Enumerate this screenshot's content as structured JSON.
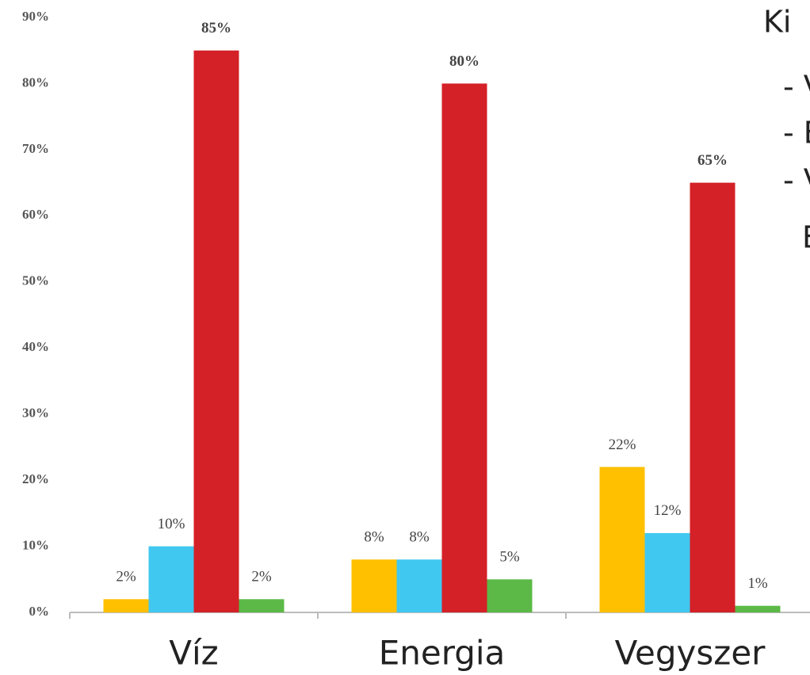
{
  "chart_data": {
    "type": "bar",
    "categories": [
      "Víz",
      "Energia",
      "Vegyszer"
    ],
    "series": [
      {
        "color": "#ffc000",
        "values": [
          2,
          8,
          22
        ],
        "value_labels": [
          "2%",
          "8%",
          "22%"
        ]
      },
      {
        "color": "#40c8f0",
        "values": [
          10,
          8,
          12
        ],
        "value_labels": [
          "10%",
          "8%",
          "12%"
        ]
      },
      {
        "color": "#d42027",
        "values": [
          85,
          80,
          65
        ],
        "value_labels": [
          "85%",
          "80%",
          "65%"
        ]
      },
      {
        "color": "#5cb947",
        "values": [
          2,
          5,
          1
        ],
        "value_labels": [
          "2%",
          "5%",
          "1%"
        ]
      }
    ],
    "ylim": [
      0,
      90
    ],
    "yticks": [
      {
        "value": 0,
        "label": "0%"
      },
      {
        "value": 10,
        "label": "10%"
      },
      {
        "value": 20,
        "label": "20%"
      },
      {
        "value": 30,
        "label": "30%"
      },
      {
        "value": 40,
        "label": "40%"
      },
      {
        "value": 50,
        "label": "50%"
      },
      {
        "value": 60,
        "label": "60%"
      },
      {
        "value": 70,
        "label": "70%"
      },
      {
        "value": 80,
        "label": "80%"
      },
      {
        "value": 90,
        "label": "90%"
      }
    ],
    "grid": false,
    "annotations": [
      "Ki",
      "- V",
      "- E",
      "- V",
      "E"
    ]
  }
}
